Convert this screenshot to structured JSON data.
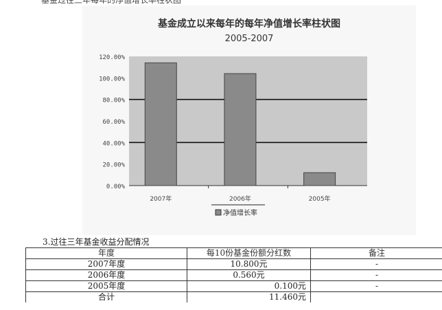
{
  "page": {
    "top_text": "基金过往三年每年的净值增长率柱状图",
    "section_title": "3.过往三年基金收益分配情况"
  },
  "chart_data": {
    "type": "bar",
    "title": "基金成立以来每年的每年净值增长率柱状图",
    "subtitle": "2005-2007",
    "categories": [
      "2007年",
      "2006年",
      "2005年"
    ],
    "series": [
      {
        "values": [
          114.0,
          104.0,
          12.0
        ]
      }
    ],
    "yticks": [
      "120.00%",
      "100.00%",
      "80.00%",
      "60.00%",
      "40.00%",
      "20.00%",
      "0.00%"
    ],
    "ylim": [
      0,
      120
    ],
    "legend": [
      "净值增长率"
    ],
    "legend_position": "bottom",
    "grid": true,
    "colors": {
      "bar": "#8a8a8a",
      "plot_bg": "#c9c9c9",
      "grid": "#111111"
    }
  },
  "table": {
    "headers": [
      "年度",
      "每10份基金份额分红数",
      "备注"
    ],
    "rows": [
      {
        "year": "2007年度",
        "dividend": "10.800元",
        "note": "-"
      },
      {
        "year": "2006年度",
        "dividend": "0.560元",
        "note": "-"
      },
      {
        "year": "2005年度",
        "dividend": "0.100元",
        "note": "-"
      },
      {
        "year": "合计",
        "dividend": "11.460元",
        "note": ""
      }
    ]
  }
}
